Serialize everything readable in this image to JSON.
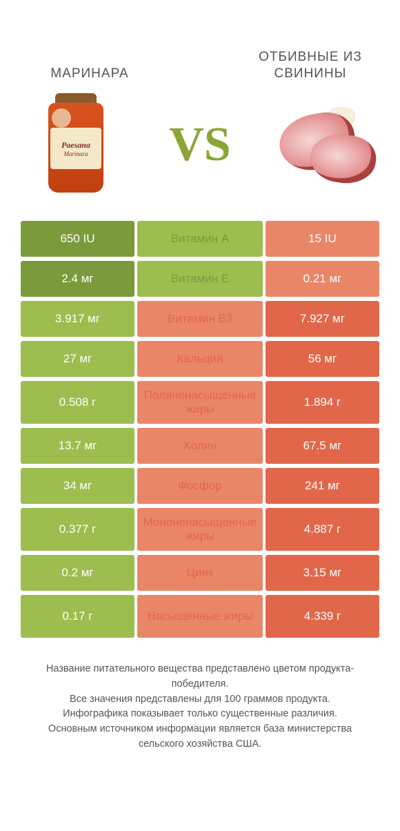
{
  "colors": {
    "green_dark": "#7b9a3c",
    "green_light": "#9dbd4f",
    "red_dark": "#e2674a",
    "red_light": "#ea8668",
    "vs": "#8aa636",
    "text": "#555555"
  },
  "left": {
    "title": "МАРИНАРА"
  },
  "right": {
    "title": "ОТБИВНЫЕ ИЗ СВИНИНЫ"
  },
  "vs": "VS",
  "jar_label_line1": "Paesana",
  "jar_label_line2": "Marinara",
  "rows": [
    {
      "left": "650 IU",
      "mid": "Витамин A",
      "right": "15 IU",
      "winner": "left",
      "tall": false
    },
    {
      "left": "2.4 мг",
      "mid": "Витамин E",
      "right": "0.21 мг",
      "winner": "left",
      "tall": false
    },
    {
      "left": "3.917 мг",
      "mid": "Витамин B3",
      "right": "7.927 мг",
      "winner": "right",
      "tall": false
    },
    {
      "left": "27 мг",
      "mid": "Кальций",
      "right": "56 мг",
      "winner": "right",
      "tall": false
    },
    {
      "left": "0.508 г",
      "mid": "Полиненасыщенные жиры",
      "right": "1.894 г",
      "winner": "right",
      "tall": true
    },
    {
      "left": "13.7 мг",
      "mid": "Холин",
      "right": "67.5 мг",
      "winner": "right",
      "tall": false
    },
    {
      "left": "34 мг",
      "mid": "Фосфор",
      "right": "241 мг",
      "winner": "right",
      "tall": false
    },
    {
      "left": "0.377 г",
      "mid": "Мононенасыщенные жиры",
      "right": "4.887 г",
      "winner": "right",
      "tall": true
    },
    {
      "left": "0.2 мг",
      "mid": "Цинк",
      "right": "3.15 мг",
      "winner": "right",
      "tall": false
    },
    {
      "left": "0.17 г",
      "mid": "Насыщенные жиры",
      "right": "4.339 г",
      "winner": "right",
      "tall": true
    }
  ],
  "footer": {
    "line1": "Название питательного вещества представлено цветом продукта-победителя.",
    "line2": "Все значения представлены для 100 граммов продукта.",
    "line3": "Инфографика показывает только существенные различия.",
    "line4": "Основным источником информации является база министерства сельского хозяйства США."
  }
}
